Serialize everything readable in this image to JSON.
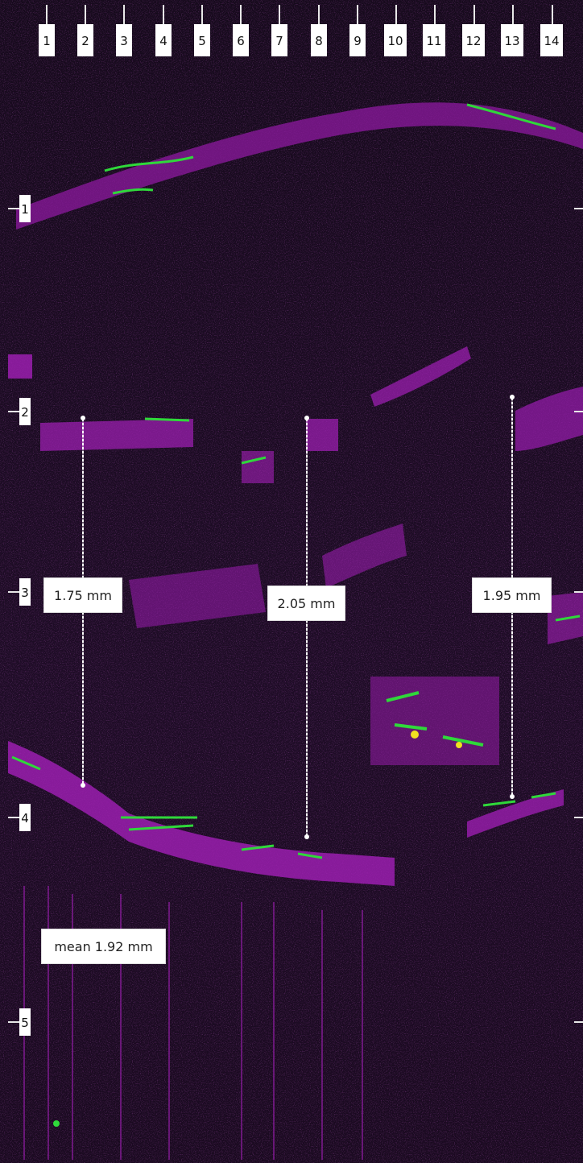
{
  "image": {
    "description_colors": {
      "background": "#1d0d24",
      "tissue": "#b41ec8",
      "bright": "#2fd83a",
      "hot": "#f0e020"
    }
  },
  "top_ruler": {
    "labels": [
      "1",
      "2",
      "3",
      "4",
      "5",
      "6",
      "7",
      "8",
      "9",
      "10",
      "11",
      "12",
      "13",
      "14"
    ]
  },
  "depth_ruler": {
    "labels": [
      "1",
      "2",
      "3",
      "4",
      "5"
    ]
  },
  "measurements": [
    {
      "label": "1.75 mm"
    },
    {
      "label": "2.05 mm"
    },
    {
      "label": "1.95 mm"
    }
  ],
  "summary": {
    "label": "mean 1.92 mm"
  }
}
